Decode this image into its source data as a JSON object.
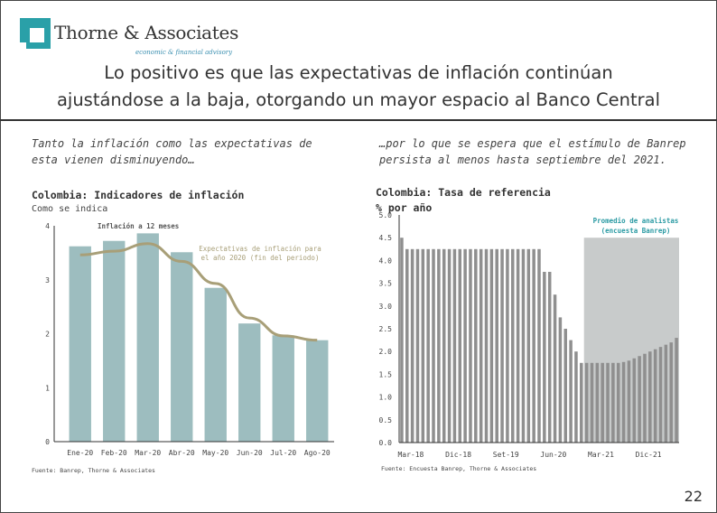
{
  "header": {
    "brand": "Thorne & Associates",
    "tagline": "economic & financial advisory",
    "title_line1": "Lo positivo es que las expectativas de inflación continúan",
    "title_line2": "ajustándose a la baja, otorgando un mayor espacio al Banco Central"
  },
  "left": {
    "intro_line1": "Tanto la inflación como las expectativas de",
    "intro_line2": "esta vienen disminuyendo…",
    "source": "Fuente: Banrep, Thorne & Associates"
  },
  "right": {
    "intro_line1": "…por lo que se espera que el estímulo de Banrep",
    "intro_line2": "persista al menos hasta septiembre del 2021.",
    "source": "Fuente: Encuesta Banrep, Thorne & Associates"
  },
  "page_number": "22",
  "colors": {
    "bar": "#9dbdbf",
    "line": "#a89f78",
    "accent": "#2aa0a8",
    "shade": "#c8cbcb",
    "rate_bar": "#8f8f8f"
  },
  "chart_data": [
    {
      "type": "bar",
      "title": "Colombia: Indicadores de inflación",
      "subtitle": "Como se indica",
      "categories": [
        "Ene-20",
        "Feb-20",
        "Mar-20",
        "Abr-20",
        "May-20",
        "Jun-20",
        "Jul-20",
        "Ago-20"
      ],
      "series": [
        {
          "name": "Inflación a 12 meses",
          "kind": "bar",
          "values": [
            3.62,
            3.72,
            3.86,
            3.51,
            2.85,
            2.19,
            1.97,
            1.88
          ]
        },
        {
          "name": "Expectativas de inflación para el año 2020 (fin del periodo)",
          "kind": "line",
          "values": [
            3.46,
            3.53,
            3.67,
            3.34,
            2.93,
            2.29,
            1.96,
            1.88
          ]
        }
      ],
      "legend": [
        "Inflación a 12 meses",
        "Expectativas de inflación para el año 2020 (fin del periodo)"
      ],
      "ylim": [
        0,
        4
      ],
      "yticks": [
        "0",
        "1",
        "2",
        "3",
        "4"
      ]
    },
    {
      "type": "bar",
      "title": "Colombia: Tasa de referencia",
      "ylabel": "% por año",
      "x_labels": [
        "Mar-18",
        "Dic-18",
        "Set-19",
        "Jun-20",
        "Mar-21",
        "Dic-21"
      ],
      "yticks": [
        "0.0",
        "0.5",
        "1.0",
        "1.5",
        "2.0",
        "2.5",
        "3.0",
        "3.5",
        "4.0",
        "4.5",
        "5.0"
      ],
      "ylim": [
        0,
        5
      ],
      "shaded_label": "Promedio de analistas (encuesta Banrep)",
      "series": [
        {
          "name": "Tasa de referencia",
          "values": [
            4.5,
            4.25,
            4.25,
            4.25,
            4.25,
            4.25,
            4.25,
            4.25,
            4.25,
            4.25,
            4.25,
            4.25,
            4.25,
            4.25,
            4.25,
            4.25,
            4.25,
            4.25,
            4.25,
            4.25,
            4.25,
            4.25,
            4.25,
            4.25,
            4.25,
            4.25,
            4.25,
            3.75,
            3.75,
            3.25,
            2.75,
            2.5,
            2.25,
            2.0,
            1.75,
            1.75,
            1.75,
            1.75,
            1.75,
            1.75,
            1.75,
            1.75,
            1.77,
            1.8,
            1.85,
            1.9,
            1.95,
            2.0,
            2.05,
            2.1,
            2.15,
            2.2,
            2.3
          ]
        }
      ]
    }
  ]
}
